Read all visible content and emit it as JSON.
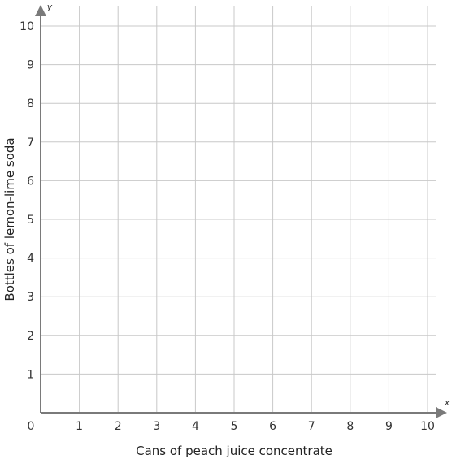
{
  "chart_data": {
    "type": "scatter",
    "title": "",
    "xlabel": "Cans of peach juice concentrate",
    "ylabel": "Bottles of lemon-lime soda",
    "x_axis_symbol": "x",
    "y_axis_symbol": "y",
    "origin_label": "0",
    "xlim": [
      0,
      10
    ],
    "ylim": [
      0,
      10
    ],
    "x_ticks": [
      "1",
      "2",
      "3",
      "4",
      "5",
      "6",
      "7",
      "8",
      "9",
      "10"
    ],
    "y_ticks": [
      "1",
      "2",
      "3",
      "4",
      "5",
      "6",
      "7",
      "8",
      "9",
      "10"
    ],
    "grid": true,
    "series": [],
    "colors": {
      "grid": "#c8c8c8",
      "axis": "#7a7a7a"
    }
  }
}
